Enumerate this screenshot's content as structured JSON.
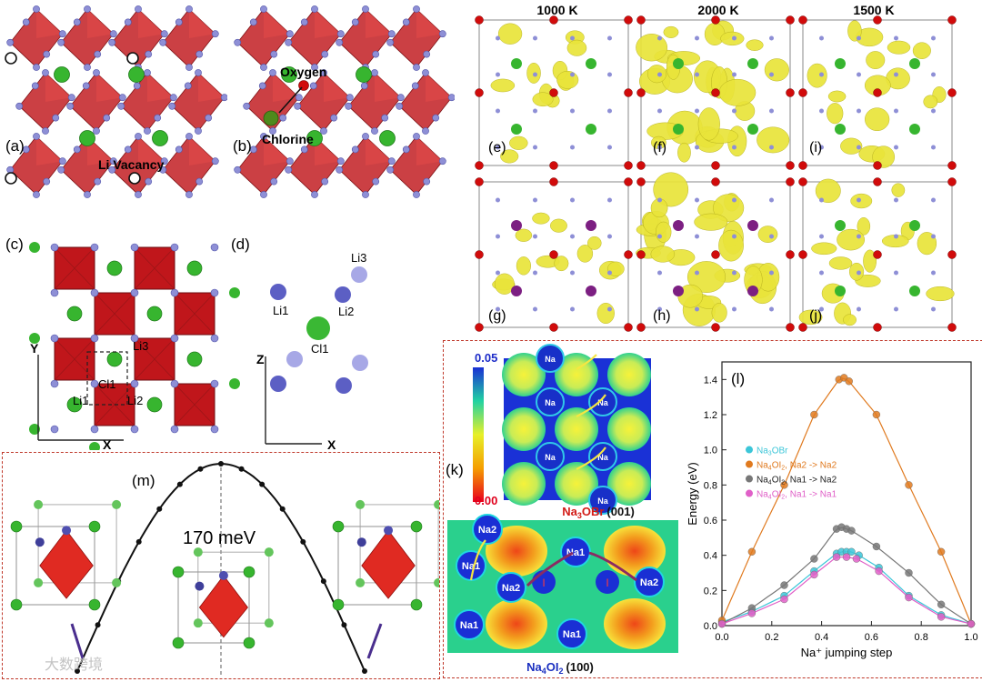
{
  "colors": {
    "octahedron": "#c0161b",
    "lithium": "#8e8fd6",
    "chlorine": "#37b52f",
    "oxygen": "#d10b0b",
    "iodine": "#7c1f82",
    "isosurface": "#e9e43a",
    "dash_border": "#c0392b",
    "curve_orange": "#e07a1f",
    "curve_black": "#555555",
    "curve_cyan": "#3cc6d8",
    "curve_magenta": "#e060c8",
    "path_arrow": "#8a2b63"
  },
  "panels": {
    "a": {
      "label": "(a)",
      "annotation": "Li Vacancy"
    },
    "b": {
      "label": "(b)",
      "annotation_top": "Oxygen",
      "annotation_bottom": "Chlorine"
    },
    "c": {
      "label": "(c)",
      "axis_x": "X",
      "axis_y": "Y",
      "site_labels": [
        "Li3",
        "Cl1",
        "Li1",
        "Li2"
      ]
    },
    "d": {
      "label": "(d)",
      "axis_x": "X",
      "axis_z": "Z",
      "site_labels": [
        "Li3",
        "Li1",
        "Li2",
        "Cl1"
      ]
    },
    "e": {
      "label": "(e)"
    },
    "f": {
      "label": "(f)"
    },
    "g": {
      "label": "(g)"
    },
    "h": {
      "label": "(h)"
    },
    "i": {
      "label": "(i)"
    },
    "j": {
      "label": "(j)"
    },
    "k": {
      "label": "(k)",
      "colorbar_max": "0.05",
      "colorbar_min": "0.00",
      "top_site_label": "Na",
      "top_caption_main": "Na",
      "top_caption_sub": "3",
      "top_caption_rest": "OBr",
      "top_caption_hkl": "(001)",
      "bottom_site_labels": [
        "Na2",
        "Na1",
        "Na2",
        "Na1",
        "Na2",
        "Na1",
        "Na1"
      ],
      "bottom_ion_label": "I",
      "bottom_caption_main": "Na",
      "bottom_caption_sub": "4",
      "bottom_caption_rest": "OI",
      "bottom_caption_sub2": "2",
      "bottom_caption_hkl": "(100)"
    },
    "m": {
      "label": "(m)",
      "barrier": "170 meV"
    }
  },
  "temperatures": [
    "1000 K",
    "2000 K",
    "1500 K"
  ],
  "watermark": "大数跨境",
  "chart_data": {
    "type": "scatter",
    "title": "(l)",
    "xlabel": "Na⁺ jumping step",
    "ylabel": "Energy (eV)",
    "xlim": [
      0.0,
      1.0
    ],
    "ylim": [
      0.0,
      1.5
    ],
    "xticks": [
      "0.0",
      "0.2",
      "0.4",
      "0.6",
      "0.8",
      "1.0"
    ],
    "yticks": [
      "0.0",
      "0.2",
      "0.4",
      "0.6",
      "0.8",
      "1.0",
      "1.2",
      "1.4"
    ],
    "legend_position": "middle-left",
    "series": [
      {
        "name": "Na3OBr",
        "legend_main": "Na",
        "legend_sub": "3",
        "legend_rest": "OBr",
        "color": "#3cc6d8",
        "x": [
          0.0,
          0.12,
          0.25,
          0.37,
          0.46,
          0.48,
          0.5,
          0.52,
          0.55,
          0.63,
          0.75,
          0.88,
          1.0
        ],
        "y": [
          0.02,
          0.08,
          0.17,
          0.31,
          0.41,
          0.42,
          0.42,
          0.42,
          0.4,
          0.33,
          0.17,
          0.06,
          0.01
        ]
      },
      {
        "name": "Na4OI2, Na2 -> Na2",
        "legend_main": "Na",
        "legend_sub": "4",
        "legend_rest": "OI",
        "legend_sub2": "2",
        "legend_tail": ", Na2 -> Na2",
        "color": "#e07a1f",
        "x": [
          0.0,
          0.12,
          0.25,
          0.37,
          0.47,
          0.49,
          0.51,
          0.62,
          0.75,
          0.88,
          1.0
        ],
        "y": [
          0.03,
          0.42,
          0.8,
          1.2,
          1.4,
          1.41,
          1.39,
          1.2,
          0.8,
          0.42,
          0.01
        ]
      },
      {
        "name": "Na4OI2, Na1 -> Na2",
        "legend_main": "Na",
        "legend_sub": "4",
        "legend_rest": "OI",
        "legend_sub2": "2",
        "legend_tail": ", Na1 -> Na2",
        "color": "#777777",
        "x": [
          0.0,
          0.12,
          0.25,
          0.37,
          0.46,
          0.48,
          0.5,
          0.52,
          0.62,
          0.75,
          0.88,
          1.0
        ],
        "y": [
          0.01,
          0.1,
          0.23,
          0.38,
          0.55,
          0.56,
          0.55,
          0.54,
          0.45,
          0.3,
          0.12,
          0.01
        ]
      },
      {
        "name": "Na4OI2, Na1 -> Na1",
        "legend_main": "Na",
        "legend_sub": "4",
        "legend_rest": "OI",
        "legend_sub2": "2",
        "legend_tail": ", Na1 -> Na1",
        "color": "#e060c8",
        "x": [
          0.0,
          0.12,
          0.25,
          0.37,
          0.46,
          0.5,
          0.54,
          0.63,
          0.75,
          0.88,
          1.0
        ],
        "y": [
          0.01,
          0.07,
          0.15,
          0.29,
          0.39,
          0.39,
          0.38,
          0.31,
          0.16,
          0.05,
          0.01
        ]
      }
    ]
  }
}
